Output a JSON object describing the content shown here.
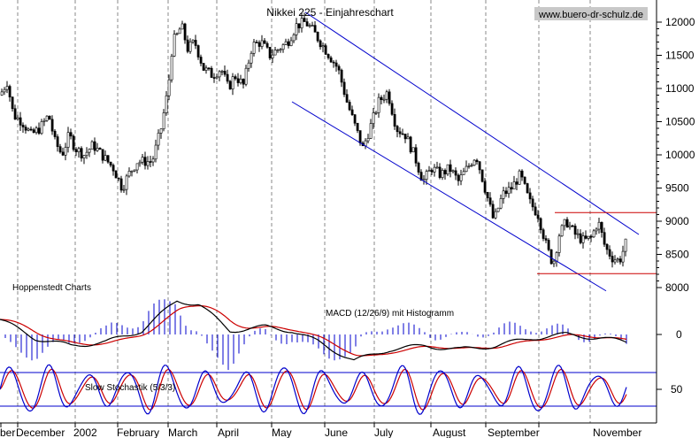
{
  "chart_data": {
    "type": "candlestick",
    "title": "Nikkei 225 - Einjahreschart",
    "watermark": "www.buero-dr-schulz.de",
    "source_label": "Hoppenstedt Charts",
    "x_labels": [
      "ber",
      "December",
      "2002",
      "February",
      "March",
      "April",
      "May",
      "June",
      "July",
      "August",
      "September",
      "November"
    ],
    "price_axis": {
      "ticks": [
        12000,
        11500,
        11000,
        10500,
        10000,
        9500,
        9000,
        8500,
        8000
      ],
      "ylim": [
        7800,
        12200
      ]
    },
    "macd_axis": {
      "ticks": [
        0
      ]
    },
    "stoch_axis": {
      "ticks": [
        50
      ]
    },
    "price_series_anchors": [
      [
        0,
        10900
      ],
      [
        8,
        11100
      ],
      [
        15,
        10600
      ],
      [
        25,
        10500
      ],
      [
        35,
        10300
      ],
      [
        45,
        10400
      ],
      [
        55,
        10600
      ],
      [
        62,
        10200
      ],
      [
        70,
        10000
      ],
      [
        78,
        10300
      ],
      [
        85,
        10100
      ],
      [
        95,
        10000
      ],
      [
        105,
        10150
      ],
      [
        115,
        10000
      ],
      [
        128,
        9800
      ],
      [
        138,
        9500
      ],
      [
        145,
        9700
      ],
      [
        155,
        9900
      ],
      [
        162,
        9900
      ],
      [
        172,
        9900
      ],
      [
        182,
        10400
      ],
      [
        190,
        11000
      ],
      [
        195,
        11700
      ],
      [
        200,
        11800
      ],
      [
        205,
        11950
      ],
      [
        212,
        11600
      ],
      [
        220,
        11700
      ],
      [
        230,
        11300
      ],
      [
        240,
        11200
      ],
      [
        250,
        11300
      ],
      [
        258,
        11000
      ],
      [
        265,
        11200
      ],
      [
        275,
        11050
      ],
      [
        285,
        11650
      ],
      [
        295,
        11700
      ],
      [
        305,
        11500
      ],
      [
        315,
        11600
      ],
      [
        325,
        11700
      ],
      [
        335,
        11950
      ],
      [
        345,
        12000
      ],
      [
        352,
        11900
      ],
      [
        362,
        11700
      ],
      [
        372,
        11500
      ],
      [
        382,
        11300
      ],
      [
        392,
        10800
      ],
      [
        402,
        10400
      ],
      [
        410,
        10100
      ],
      [
        418,
        10400
      ],
      [
        428,
        10800
      ],
      [
        438,
        10950
      ],
      [
        448,
        10400
      ],
      [
        458,
        10300
      ],
      [
        468,
        10000
      ],
      [
        478,
        9600
      ],
      [
        488,
        9800
      ],
      [
        498,
        9700
      ],
      [
        508,
        9800
      ],
      [
        518,
        9600
      ],
      [
        528,
        9800
      ],
      [
        538,
        10000
      ],
      [
        548,
        9500
      ],
      [
        558,
        9000
      ],
      [
        568,
        9400
      ],
      [
        578,
        9500
      ],
      [
        588,
        9700
      ],
      [
        598,
        9300
      ],
      [
        608,
        9100
      ],
      [
        618,
        8600
      ],
      [
        625,
        8350
      ],
      [
        632,
        8800
      ],
      [
        640,
        9000
      ],
      [
        650,
        8800
      ],
      [
        660,
        8700
      ],
      [
        668,
        8750
      ],
      [
        676,
        9000
      ],
      [
        684,
        8600
      ],
      [
        692,
        8450
      ],
      [
        700,
        8400
      ],
      [
        708,
        8700
      ]
    ],
    "macd_anchors": [
      [
        0,
        20
      ],
      [
        40,
        -5
      ],
      [
        80,
        -15
      ],
      [
        120,
        -10
      ],
      [
        160,
        5
      ],
      [
        200,
        45
      ],
      [
        225,
        40
      ],
      [
        260,
        5
      ],
      [
        300,
        10
      ],
      [
        330,
        5
      ],
      [
        360,
        -10
      ],
      [
        400,
        -35
      ],
      [
        440,
        -20
      ],
      [
        480,
        -15
      ],
      [
        520,
        -20
      ],
      [
        560,
        -15
      ],
      [
        600,
        -5
      ],
      [
        640,
        0
      ],
      [
        680,
        -5
      ],
      [
        708,
        -10
      ]
    ],
    "stoch_cycles": 16,
    "trend_lines": [
      {
        "from": [
          345,
          12150
        ],
        "to": [
          722,
          8800
        ],
        "color": "#0000cc"
      },
      {
        "from": [
          330,
          10800
        ],
        "to": [
          685,
          7950
        ],
        "color": "#0000cc"
      },
      {
        "from": [
          627,
          9130
        ],
        "to": [
          742,
          9130
        ],
        "color": "#cc0000"
      },
      {
        "from": [
          607,
          8210
        ],
        "to": [
          742,
          8210
        ],
        "color": "#cc0000"
      }
    ],
    "indicators": {
      "macd": {
        "label": "MACD (12/26/9) mit Histogramm"
      },
      "stochastic": {
        "label": "Slow Stochastik (5/3/3)"
      }
    },
    "colors": {
      "candles": "#000000",
      "channel": "#0000cc",
      "support": "#cc0000",
      "macd_line": "#000000",
      "signal_line": "#cc0000",
      "histogram": "#0000cc",
      "stoch_k": "#0000cc",
      "stoch_d": "#cc0000",
      "gridlines": "#888888"
    },
    "grid": true
  }
}
